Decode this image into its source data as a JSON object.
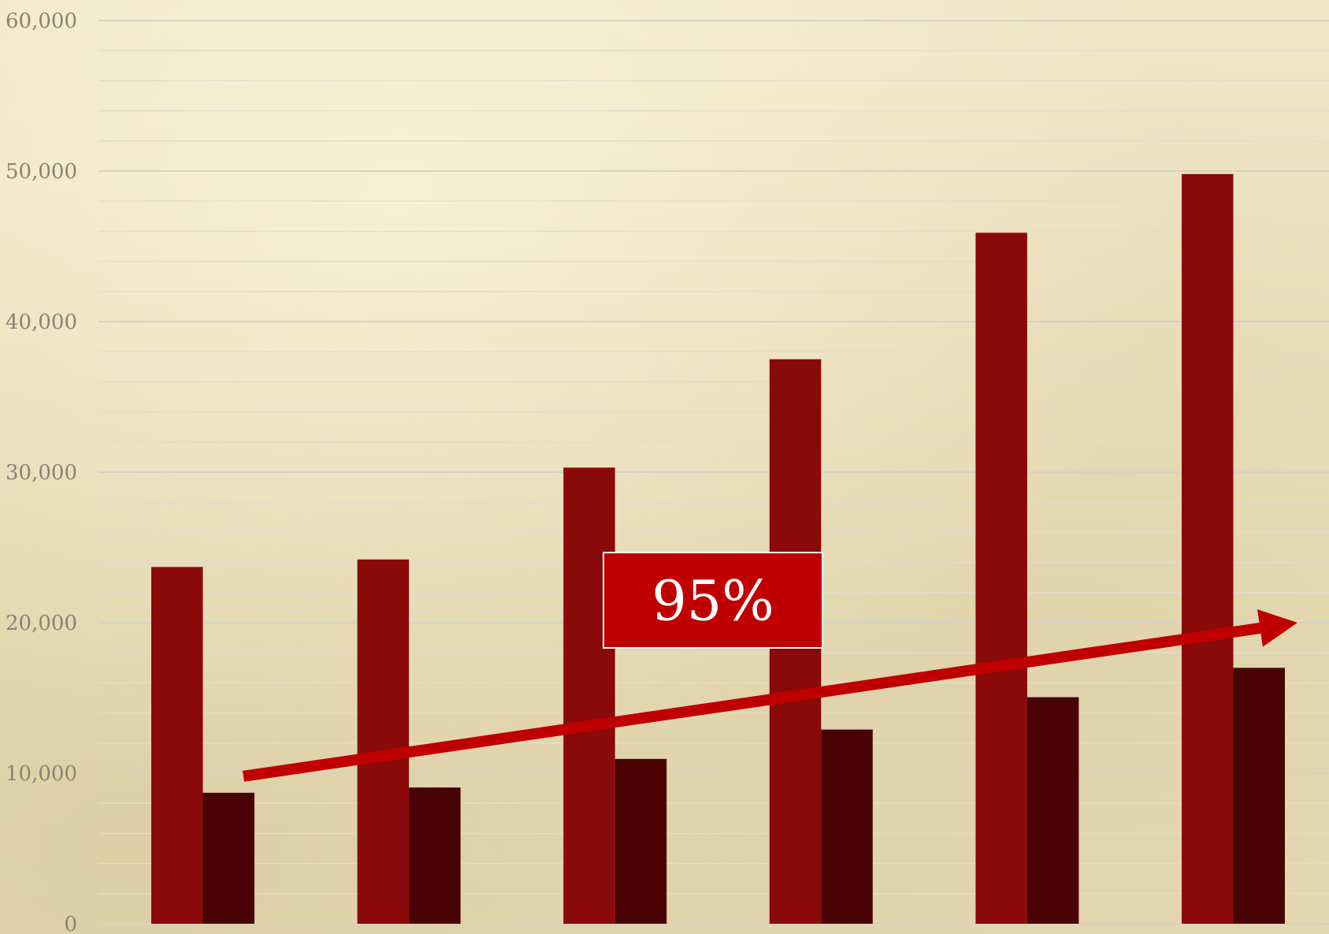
{
  "chart_data": {
    "type": "bar",
    "categories": [
      "",
      "",
      "",
      "",
      "",
      ""
    ],
    "series": [
      {
        "values": [
          23700,
          24200,
          30300,
          37500,
          45900,
          49800
        ],
        "color": "#8a0a09"
      },
      {
        "values": [
          8700,
          9050,
          10950,
          12900,
          15050,
          17000
        ],
        "color": "#4a0304"
      }
    ],
    "y_ticks": [
      "0",
      "10,000",
      "20,000",
      "30,000",
      "40,000",
      "50,000",
      "60,000"
    ],
    "ylim": [
      0,
      60000
    ],
    "grid": true,
    "trend_arrow": {
      "from": 9800,
      "to": 20000,
      "color": "#c00000"
    },
    "callout": {
      "text": "95%",
      "background": "#c00000"
    }
  }
}
